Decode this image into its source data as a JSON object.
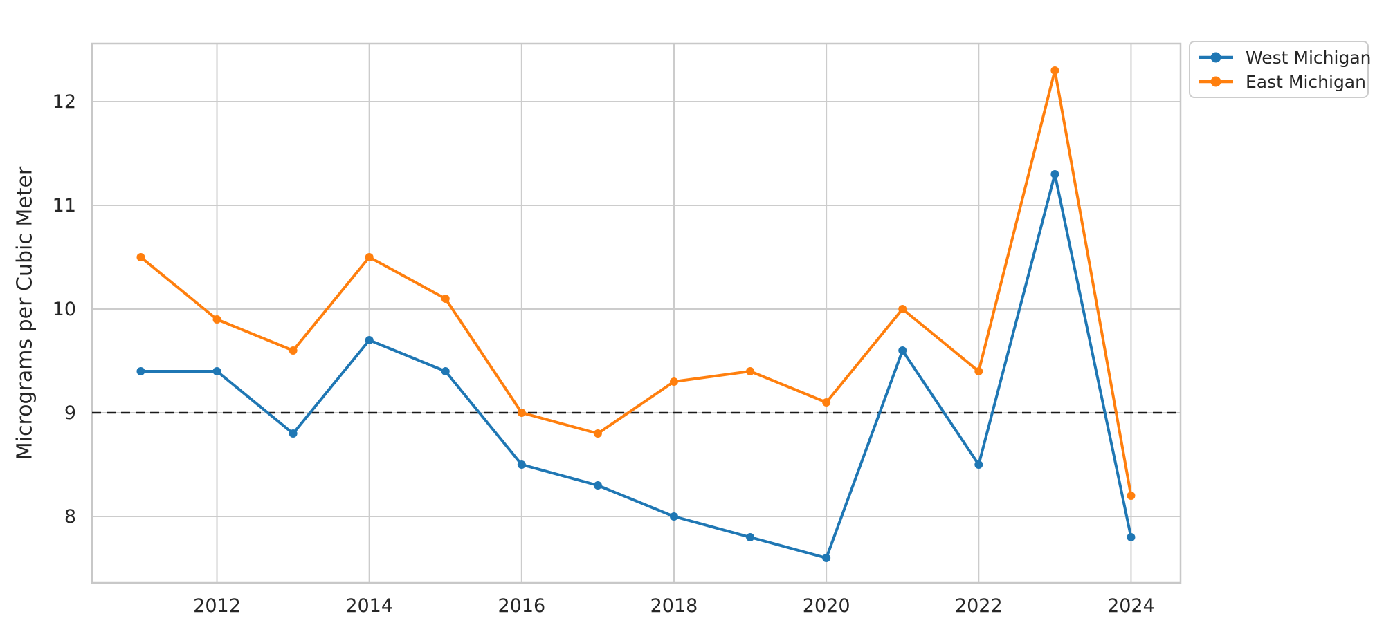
{
  "figure": {
    "background": "#ffffff",
    "plot_background": "#ffffff",
    "grid_color": "#cccccc",
    "spine_color": "#c8c8c8",
    "text_color": "#262626"
  },
  "chart_data": {
    "type": "line",
    "title": "",
    "xlabel": "",
    "ylabel": "Micrograms per Cubic Meter",
    "x": [
      2011,
      2012,
      2013,
      2014,
      2015,
      2016,
      2017,
      2018,
      2019,
      2020,
      2021,
      2022,
      2023,
      2024
    ],
    "series": [
      {
        "name": "West Michigan",
        "color": "#1f77b4",
        "marker": "circle",
        "values": [
          9.4,
          9.4,
          8.8,
          9.7,
          9.4,
          8.5,
          8.3,
          8.0,
          7.8,
          7.6,
          9.6,
          8.5,
          11.3,
          7.8
        ]
      },
      {
        "name": "East Michigan",
        "color": "#ff7f0e",
        "marker": "circle",
        "values": [
          10.5,
          9.9,
          9.6,
          10.5,
          10.1,
          9.0,
          8.8,
          9.3,
          9.4,
          9.1,
          10.0,
          9.4,
          12.3,
          8.2
        ]
      }
    ],
    "reference_line": {
      "y": 9.0,
      "style": "dashed",
      "color": "#1a1a1a"
    },
    "xlim": [
      2010.36,
      2024.65
    ],
    "ylim": [
      7.36,
      12.56
    ],
    "xticks": [
      2012,
      2014,
      2016,
      2018,
      2020,
      2022,
      2024
    ],
    "yticks": [
      8,
      9,
      10,
      11,
      12
    ],
    "grid": true,
    "legend": {
      "position": "upper right outside",
      "items": [
        "West Michigan",
        "East Michigan"
      ]
    }
  }
}
